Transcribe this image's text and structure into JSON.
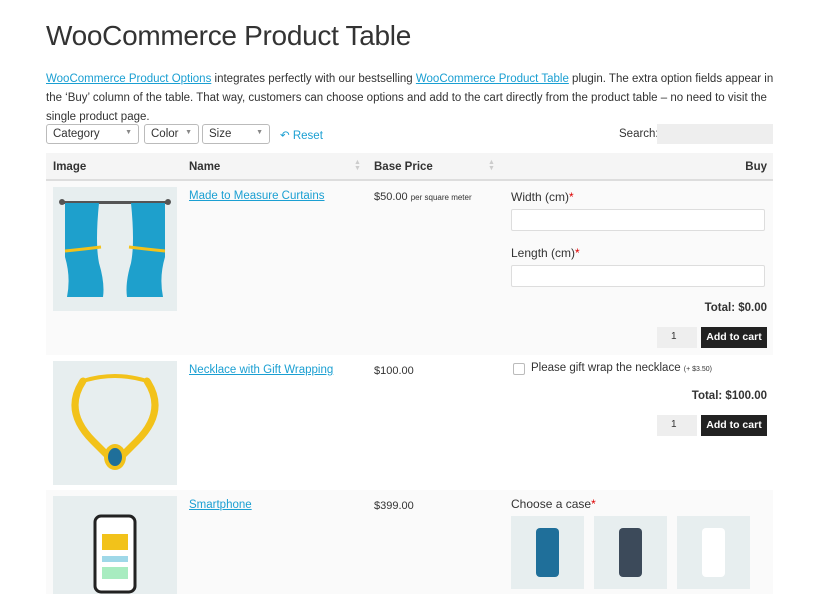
{
  "title": "WooCommerce Product Table",
  "intro": {
    "link1": "WooCommerce Product Options",
    "text1": " integrates perfectly with our bestselling ",
    "link2": "WooCommerce Product Table",
    "text2": " plugin. The extra option fields appear in the ‘Buy’ column of the table. That way, customers can choose options and add to the cart directly from the product table – no need to visit the single product page."
  },
  "filters": {
    "category": "Category",
    "color": "Color",
    "size": "Size",
    "reset": "Reset",
    "search_label": "Search:",
    "search_value": ""
  },
  "columns": [
    "Image",
    "Name",
    "Base Price",
    "Buy"
  ],
  "products": [
    {
      "name": "Made to Measure Curtains",
      "price": "$50.00",
      "price_unit": "per square meter",
      "fields": [
        {
          "label": "Width (cm)",
          "required": "*"
        },
        {
          "label": "Length (cm)",
          "required": "*"
        }
      ],
      "total": "Total: $0.00",
      "qty": "1",
      "button": "Add to cart"
    },
    {
      "name": "Necklace with Gift Wrapping",
      "price": "$100.00",
      "checkbox": {
        "label": "Please gift wrap the necklace",
        "extra": "(+ $3.50)",
        "checked": false
      },
      "total": "Total: $100.00",
      "qty": "1",
      "button": "Add to cart"
    },
    {
      "name": "Smartphone",
      "price": "$399.00",
      "choice_label": "Choose a case",
      "required": "*",
      "cases": [
        {
          "color": "#1f6f9a"
        },
        {
          "color": "#3c4a5a"
        },
        {
          "color": "#ffffff"
        }
      ]
    }
  ],
  "colors": {
    "link": "#1a9fd2",
    "button": "#222222",
    "curtain": "#1ea0cc",
    "gold": "#f2c21a"
  }
}
